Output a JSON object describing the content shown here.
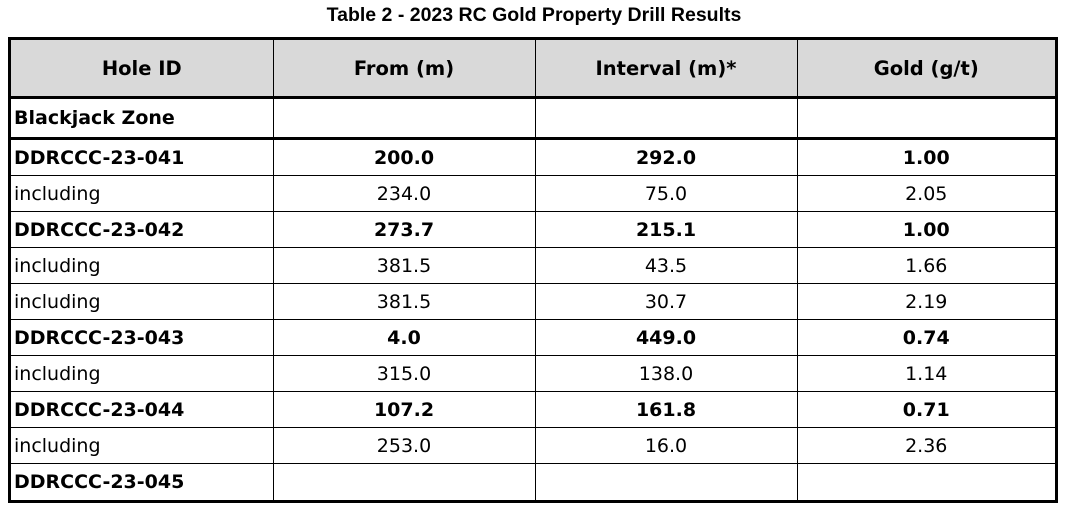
{
  "title": "Table 2 - 2023 RC Gold Property Drill Results",
  "table": {
    "headers": [
      "Hole ID",
      "From (m)",
      "Interval (m)*",
      "Gold (g/t)"
    ],
    "section": "Blackjack Zone",
    "rows": [
      {
        "hole": "DDRCCC-23-041",
        "from": "200.0",
        "interval": "292.0",
        "gold": "1.00",
        "bold": true
      },
      {
        "hole": "including",
        "from": "234.0",
        "interval": "75.0",
        "gold": "2.05",
        "bold": false
      },
      {
        "hole": "DDRCCC-23-042",
        "from": "273.7",
        "interval": "215.1",
        "gold": "1.00",
        "bold": true
      },
      {
        "hole": "including",
        "from": "381.5",
        "interval": "43.5",
        "gold": "1.66",
        "bold": false
      },
      {
        "hole": "including",
        "from": "381.5",
        "interval": "30.7",
        "gold": "2.19",
        "bold": false
      },
      {
        "hole": "DDRCCC-23-043",
        "from": "4.0",
        "interval": "449.0",
        "gold": "0.74",
        "bold": true
      },
      {
        "hole": "including",
        "from": "315.0",
        "interval": "138.0",
        "gold": "1.14",
        "bold": false
      },
      {
        "hole": "DDRCCC-23-044",
        "from": "107.2",
        "interval": "161.8",
        "gold": "0.71",
        "bold": true
      },
      {
        "hole": "including",
        "from": "253.0",
        "interval": "16.0",
        "gold": "2.36",
        "bold": false
      },
      {
        "hole": "DDRCCC-23-045",
        "from": "",
        "interval": "",
        "gold": "",
        "bold": true
      }
    ]
  }
}
